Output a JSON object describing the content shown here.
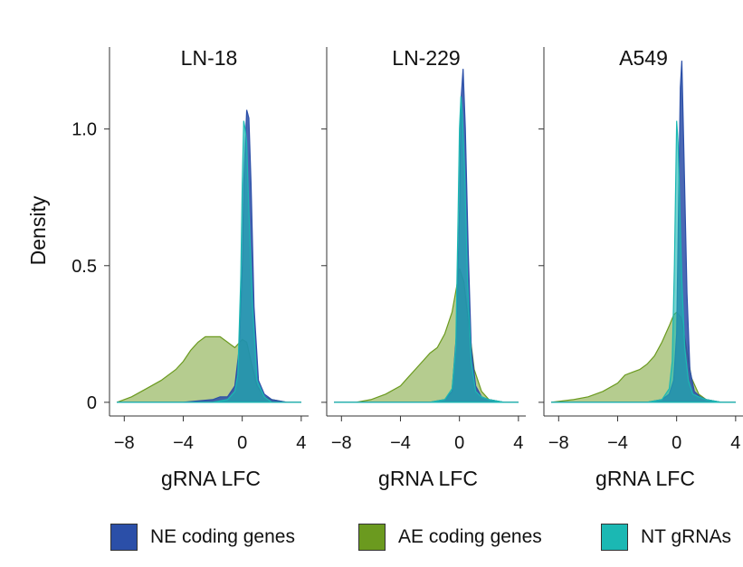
{
  "chart_data": {
    "type": "area",
    "ylabel": "Density",
    "xlabel": "gRNA LFC",
    "xlim": [
      -9,
      4.5
    ],
    "ylim": [
      -0.05,
      1.3
    ],
    "xticks": [
      -8,
      -4,
      0,
      4
    ],
    "xtick_labels": [
      "−8",
      "−4",
      "0",
      "4"
    ],
    "yticks": [
      0,
      0.5,
      1.0
    ],
    "ytick_labels": [
      "0",
      "0.5",
      "1.0"
    ],
    "grid": false,
    "legend_position": "bottom",
    "series_styles": [
      {
        "name": "NE coding genes",
        "color": "#2B4FA8"
      },
      {
        "name": "AE coding genes",
        "color": "#6B9A1F"
      },
      {
        "name": "NT gRNAs",
        "color": "#1BB8B3"
      }
    ],
    "panels": [
      {
        "title": "LN-18",
        "series": [
          {
            "name": "AE coding genes",
            "x": [
              -8.5,
              -7.5,
              -6.5,
              -5.5,
              -4.5,
              -4,
              -3.5,
              -3,
              -2.5,
              -2,
              -1.5,
              -1,
              -0.5,
              0,
              0.3,
              0.6,
              1,
              1.5,
              2,
              3,
              4
            ],
            "y": [
              0.0,
              0.02,
              0.05,
              0.08,
              0.12,
              0.15,
              0.19,
              0.22,
              0.24,
              0.24,
              0.24,
              0.22,
              0.2,
              0.23,
              0.22,
              0.15,
              0.06,
              0.02,
              0.01,
              0.0,
              0.0
            ]
          },
          {
            "name": "NE coding genes",
            "x": [
              -8.5,
              -6,
              -4,
              -2,
              -1.5,
              -1,
              -0.5,
              -0.2,
              0,
              0.1,
              0.3,
              0.45,
              0.6,
              0.8,
              1.1,
              1.5,
              2,
              3,
              4
            ],
            "y": [
              0.0,
              0.0,
              0.0,
              0.01,
              0.02,
              0.02,
              0.06,
              0.2,
              0.5,
              0.8,
              1.07,
              1.04,
              0.8,
              0.35,
              0.08,
              0.03,
              0.01,
              0.0,
              0.0
            ]
          },
          {
            "name": "NT gRNAs",
            "x": [
              -8.5,
              -4,
              -2,
              -1,
              -0.5,
              -0.3,
              -0.1,
              0,
              0.1,
              0.2,
              0.3,
              0.45,
              0.7,
              1,
              1.5,
              2,
              4
            ],
            "y": [
              0.0,
              0.0,
              0.0,
              0.01,
              0.04,
              0.1,
              0.45,
              0.8,
              1.03,
              1.0,
              0.95,
              0.7,
              0.35,
              0.08,
              0.02,
              0.0,
              0.0
            ]
          }
        ]
      },
      {
        "title": "LN-229",
        "series": [
          {
            "name": "AE coding genes",
            "x": [
              -8.5,
              -7,
              -6,
              -5,
              -4,
              -3.5,
              -3,
              -2.5,
              -2,
              -1.5,
              -1,
              -0.5,
              -0.2,
              0,
              0.3,
              0.6,
              1,
              1.5,
              2,
              3,
              4
            ],
            "y": [
              0.0,
              0.0,
              0.01,
              0.03,
              0.06,
              0.09,
              0.12,
              0.15,
              0.18,
              0.2,
              0.25,
              0.33,
              0.42,
              0.49,
              0.44,
              0.3,
              0.12,
              0.04,
              0.01,
              0.0,
              0.0
            ]
          },
          {
            "name": "NE coding genes",
            "x": [
              -8.5,
              -6,
              -4,
              -2,
              -1,
              -0.5,
              -0.2,
              0,
              0.1,
              0.25,
              0.4,
              0.6,
              0.8,
              1.1,
              1.5,
              2,
              3,
              4
            ],
            "y": [
              0.0,
              0.0,
              0.0,
              0.0,
              0.01,
              0.04,
              0.25,
              0.7,
              1.1,
              1.22,
              1.0,
              0.55,
              0.2,
              0.06,
              0.02,
              0.01,
              0.0,
              0.0
            ]
          },
          {
            "name": "NT gRNAs",
            "x": [
              -8.5,
              -4,
              -2,
              -1,
              -0.5,
              -0.25,
              -0.1,
              0,
              0.1,
              0.2,
              0.35,
              0.55,
              0.8,
              1.1,
              1.5,
              2,
              3,
              4
            ],
            "y": [
              0.0,
              0.0,
              0.0,
              0.01,
              0.05,
              0.2,
              0.65,
              1.0,
              1.12,
              1.05,
              0.85,
              0.45,
              0.15,
              0.04,
              0.02,
              0.01,
              0.0,
              0.0
            ]
          }
        ]
      },
      {
        "title": "A549",
        "series": [
          {
            "name": "AE coding genes",
            "x": [
              -8.5,
              -7,
              -6,
              -5,
              -4,
              -3.5,
              -3,
              -2.5,
              -2,
              -1.5,
              -1,
              -0.5,
              -0.2,
              0,
              0.3,
              0.6,
              1,
              1.5,
              2,
              3,
              4
            ],
            "y": [
              0.0,
              0.01,
              0.02,
              0.04,
              0.07,
              0.1,
              0.11,
              0.12,
              0.14,
              0.17,
              0.22,
              0.28,
              0.32,
              0.33,
              0.31,
              0.22,
              0.09,
              0.03,
              0.01,
              0.0,
              0.0
            ]
          },
          {
            "name": "NE coding genes",
            "x": [
              -8.5,
              -6,
              -4,
              -2,
              -1,
              -0.5,
              -0.2,
              0,
              0.1,
              0.25,
              0.35,
              0.5,
              0.7,
              0.9,
              1.2,
              1.6,
              2,
              3,
              4
            ],
            "y": [
              0.0,
              0.0,
              0.0,
              0.0,
              0.01,
              0.03,
              0.08,
              0.25,
              0.6,
              1.15,
              1.25,
              0.9,
              0.4,
              0.12,
              0.04,
              0.02,
              0.01,
              0.0,
              0.0
            ]
          },
          {
            "name": "NT gRNAs",
            "x": [
              -8.5,
              -4,
              -2,
              -1,
              -0.5,
              -0.3,
              -0.15,
              0,
              0.1,
              0.2,
              0.35,
              0.55,
              0.8,
              1.1,
              1.5,
              2,
              3,
              4
            ],
            "y": [
              0.0,
              0.0,
              0.0,
              0.01,
              0.05,
              0.15,
              0.5,
              1.03,
              0.95,
              0.75,
              0.45,
              0.2,
              0.08,
              0.03,
              0.02,
              0.01,
              0.0,
              0.0
            ]
          }
        ]
      }
    ]
  }
}
